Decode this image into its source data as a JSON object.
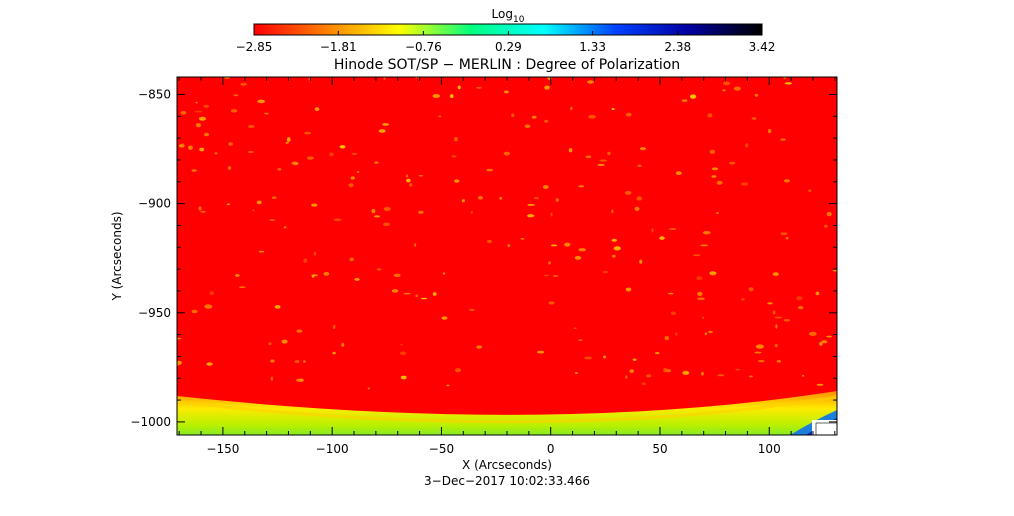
{
  "chart_data": {
    "type": "heatmap",
    "title": "Hinode SOT/SP − MERLIN : Degree of Polarization",
    "xlabel": "X (Arcseconds)",
    "ylabel": "Y (Arcseconds)",
    "timestamp": "3−Dec−2017 10:02:33.466",
    "xlim": [
      -171,
      131
    ],
    "ylim": [
      -1006,
      -842
    ],
    "x_ticks": [
      -150,
      -100,
      -50,
      0,
      50,
      100
    ],
    "y_ticks": [
      -850,
      -900,
      -950,
      -1000
    ],
    "x_tick_labels": [
      "−150",
      "−100",
      "−50",
      "0",
      "50",
      "100"
    ],
    "y_tick_labels": [
      "−850",
      "−900",
      "−950",
      "−1000"
    ],
    "colorbar": {
      "label_base": "Log",
      "label_sub": "10",
      "range": [
        -2.85,
        3.42
      ],
      "ticks": [
        -2.85,
        -1.81,
        -0.76,
        0.29,
        1.33,
        2.38,
        3.42
      ],
      "tick_labels": [
        "−2.85",
        "−1.81",
        "−0.76",
        "0.29",
        "1.33",
        "2.38",
        "3.42"
      ],
      "colors": [
        "#ff0000",
        "#ff8000",
        "#ffff00",
        "#00ff80",
        "#00ffff",
        "#0040ff",
        "#0000a0",
        "#000000"
      ]
    },
    "grid": false,
    "field_color": "#ff0000"
  }
}
